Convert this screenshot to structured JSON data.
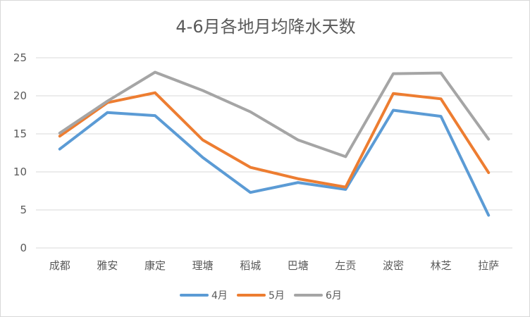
{
  "chart_data": {
    "type": "line",
    "title": "4-6月各地月均降水天数",
    "xlabel": "",
    "ylabel": "",
    "categories": [
      "成都",
      "雅安",
      "康定",
      "理塘",
      "稻城",
      "巴塘",
      "左贡",
      "波密",
      "林芝",
      "拉萨"
    ],
    "y_ticks": [
      "0",
      "5",
      "10",
      "15",
      "20",
      "25"
    ],
    "ylim": [
      0,
      25
    ],
    "grid": true,
    "legend_position": "bottom",
    "series": [
      {
        "name": "4月",
        "color": "#5b9bd5",
        "values": [
          13.0,
          17.8,
          17.4,
          11.9,
          7.3,
          8.6,
          7.7,
          18.1,
          17.3,
          4.3
        ]
      },
      {
        "name": "5月",
        "color": "#ed7d31",
        "values": [
          14.7,
          19.1,
          20.4,
          14.2,
          10.6,
          9.1,
          8.0,
          20.3,
          19.6,
          9.9
        ]
      },
      {
        "name": "6月",
        "color": "#a5a5a5",
        "values": [
          15.1,
          19.3,
          23.1,
          20.7,
          17.9,
          14.2,
          12.0,
          22.9,
          23.0,
          14.3
        ]
      }
    ]
  }
}
